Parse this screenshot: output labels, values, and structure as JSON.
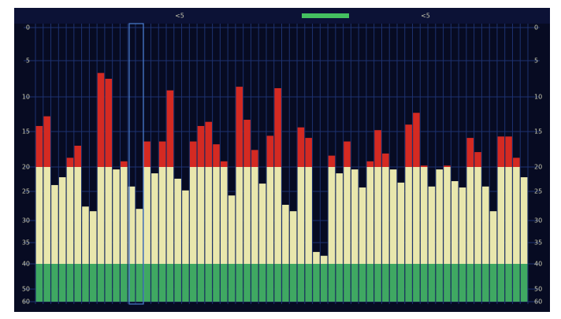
{
  "chart_data": {
    "type": "bar",
    "header_labels": [
      "<5",
      "<5"
    ],
    "values": [
      14.2,
      12.8,
      23.7,
      22.1,
      18.7,
      17.0,
      27.6,
      28.4,
      6.7,
      7.5,
      20.5,
      19.2,
      24.0,
      28.0,
      16.4,
      21.3,
      16.4,
      9.1,
      22.4,
      24.8,
      16.4,
      14.2,
      13.6,
      16.8,
      19.2,
      25.7,
      8.6,
      13.3,
      17.6,
      23.4,
      15.6,
      8.8,
      27.3,
      28.4,
      14.4,
      15.9,
      37.2,
      38.1,
      18.4,
      21.3,
      16.4,
      20.5,
      24.2,
      19.2,
      14.8,
      18.1,
      20.5,
      23.2,
      14.0,
      12.3,
      19.8,
      24.0,
      20.5,
      19.8,
      22.9,
      24.2,
      15.9,
      17.9,
      24.0,
      28.4,
      15.7,
      15.7,
      18.7,
      22.1
    ],
    "zones": [
      {
        "below": 20,
        "color": "#d42a22"
      },
      {
        "below": 40,
        "color": "#e9e7ad"
      },
      {
        "below": 60,
        "color": "#3fa862"
      }
    ],
    "ylim": [
      0,
      60
    ],
    "yticks": [
      0,
      5,
      10,
      15,
      20,
      25,
      30,
      35,
      40,
      50,
      60
    ],
    "grid": true
  }
}
